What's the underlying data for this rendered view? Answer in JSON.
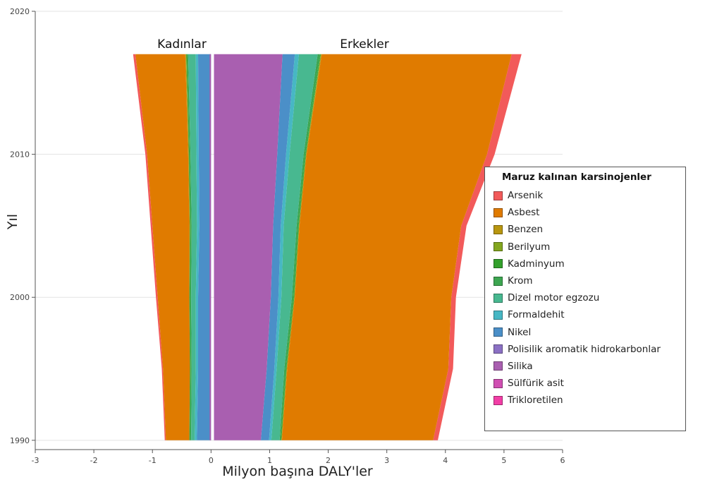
{
  "chart_data": {
    "type": "area",
    "orientation": "horizontal-stacked-butterfly",
    "xlabel": "Milyon başına DALY'ler",
    "ylabel": "Yıl",
    "xlim": [
      -3,
      6
    ],
    "ylim": [
      1990,
      2020
    ],
    "xticks": [
      -3,
      -2,
      -1,
      0,
      1,
      2,
      3,
      4,
      5,
      6
    ],
    "yticks": [
      1990,
      2000,
      2010,
      2020
    ],
    "grid": "horizontal",
    "panels": [
      "Kadınlar",
      "Erkekler"
    ],
    "legend_title": "Maruz kalınan karsinojenler",
    "legend_position": "right",
    "series": [
      {
        "name": "Arsenik",
        "color": "#f25a5a"
      },
      {
        "name": "Asbest",
        "color": "#e07b00"
      },
      {
        "name": "Benzen",
        "color": "#b8960f"
      },
      {
        "name": "Berilyum",
        "color": "#83a61f"
      },
      {
        "name": "Kadminyum",
        "color": "#33a02c"
      },
      {
        "name": "Krom",
        "color": "#3da651"
      },
      {
        "name": "Dizel motor egzozu",
        "color": "#48b890"
      },
      {
        "name": "Formaldehit",
        "color": "#47b7c4"
      },
      {
        "name": "Nikel",
        "color": "#4b8fc8"
      },
      {
        "name": "Polisilik aromatik hidrokarbonlar",
        "color": "#8b70c4"
      },
      {
        "name": "Silika",
        "color": "#a95fb0"
      },
      {
        "name": "Sülfürik asit",
        "color": "#d04fb2"
      },
      {
        "name": "Trikloretilen",
        "color": "#f23ea6"
      }
    ],
    "stacks": {
      "years": [
        1990,
        1995,
        2000,
        2005,
        2010,
        2017
      ],
      "women": {
        "Silika": [
          0.0,
          0.0,
          0.0,
          0.0,
          0.0,
          0.0
        ],
        "Nikel": [
          0.24,
          0.22,
          0.22,
          0.2,
          0.21,
          0.22
        ],
        "Formaldehit": [
          0.28,
          0.26,
          0.26,
          0.24,
          0.25,
          0.26
        ],
        "Dizel motor egzozu": [
          0.34,
          0.33,
          0.34,
          0.33,
          0.35,
          0.39
        ],
        "Krom": [
          0.36,
          0.35,
          0.36,
          0.35,
          0.37,
          0.41
        ],
        "Kadminyum": [
          0.37,
          0.36,
          0.37,
          0.36,
          0.38,
          0.42
        ],
        "Berilyum": [
          0.37,
          0.36,
          0.37,
          0.36,
          0.38,
          0.43
        ],
        "Benzen": [
          0.37,
          0.36,
          0.37,
          0.37,
          0.39,
          0.44
        ],
        "Asbest": [
          0.77,
          0.82,
          0.91,
          1.0,
          1.09,
          1.29
        ],
        "Arsenik": [
          0.79,
          0.84,
          0.94,
          1.03,
          1.12,
          1.33
        ]
      },
      "men": {
        "Silika": [
          0.8,
          0.9,
          0.97,
          1.01,
          1.08,
          1.17
        ],
        "Nikel": [
          0.94,
          1.03,
          1.1,
          1.14,
          1.23,
          1.38
        ],
        "Formaldehit": [
          0.98,
          1.07,
          1.15,
          1.19,
          1.29,
          1.45
        ],
        "Dizel motor egzozu": [
          1.12,
          1.2,
          1.33,
          1.41,
          1.53,
          1.77
        ],
        "Krom": [
          1.14,
          1.23,
          1.36,
          1.44,
          1.56,
          1.81
        ],
        "Kadminyum": [
          1.15,
          1.24,
          1.37,
          1.45,
          1.57,
          1.82
        ],
        "Berilyum": [
          1.15,
          1.24,
          1.37,
          1.45,
          1.57,
          1.83
        ],
        "Benzen": [
          1.16,
          1.25,
          1.38,
          1.46,
          1.58,
          1.84
        ],
        "Asbest": [
          3.74,
          4.0,
          4.05,
          4.22,
          4.66,
          5.08
        ],
        "Arsenik": [
          3.82,
          4.08,
          4.13,
          4.31,
          4.79,
          5.25
        ]
      }
    }
  }
}
